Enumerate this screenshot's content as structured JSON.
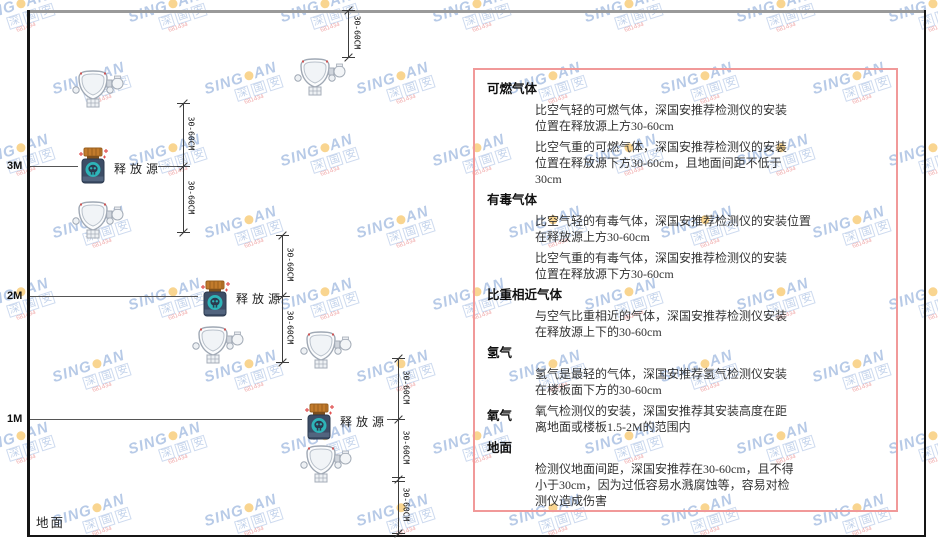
{
  "watermark": {
    "brand_left": "SING",
    "brand_right": "AN",
    "seal": "深国安",
    "code": "681434"
  },
  "colors": {
    "panel_border": "#f19999",
    "source_body": "#3c4d66",
    "source_circle": "#2eb4b8",
    "source_cap": "#c27b2c",
    "detector_outline": "#9fa8b4",
    "ceiling_line": "#9a9a9a",
    "watermark_blue": "#7096d0"
  },
  "diagram": {
    "levels": [
      {
        "label": "3M"
      },
      {
        "label": "2M"
      },
      {
        "label": "1M"
      }
    ],
    "ground_label": "地面",
    "source_label": "释放源",
    "dim_label": "30-60CM"
  },
  "panel": {
    "sections": [
      {
        "header": "可燃气体",
        "paragraphs": [
          "比空气轻的可燃气体，深国安推荐检测仪的安装\n位置在释放源上方30-60cm",
          "比空气重的可燃气体，深国安推荐检测仪的安装\n位置在释放源下方30-60cm，且地面间距不低于\n30cm"
        ]
      },
      {
        "header": "有毒气体",
        "paragraphs": [
          "比空气轻的有毒气体，深国安推荐检测仪的安装位置\n在释放源上方30-60cm",
          "比空气重的有毒气体，深国安推荐检测仪的安装\n位置在释放源下方30-60cm"
        ]
      },
      {
        "header": "比重相近气体",
        "paragraphs": [
          "与空气比重相近的气体，深国安推荐检测仪安装\n在释放源上下的30-60cm"
        ]
      },
      {
        "header": "氢气",
        "paragraphs": [
          "氢气是最轻的气体，深国安推荐氢气检测仪安装\n在楼板面下方的30-60cm"
        ]
      },
      {
        "header": "氧气",
        "inline": true,
        "paragraphs": [
          "氧气检测仪的安装，深国安推荐其安装高度在距\n离地面或楼板1.5-2M的范围内"
        ]
      },
      {
        "header": "地面",
        "paragraphs": [
          "检测仪地面间距，深国安推荐在30-60cm，且不得\n小于30cm，因为过低容易水溅腐蚀等，容易对检\n测仪造成伤害"
        ]
      }
    ]
  }
}
